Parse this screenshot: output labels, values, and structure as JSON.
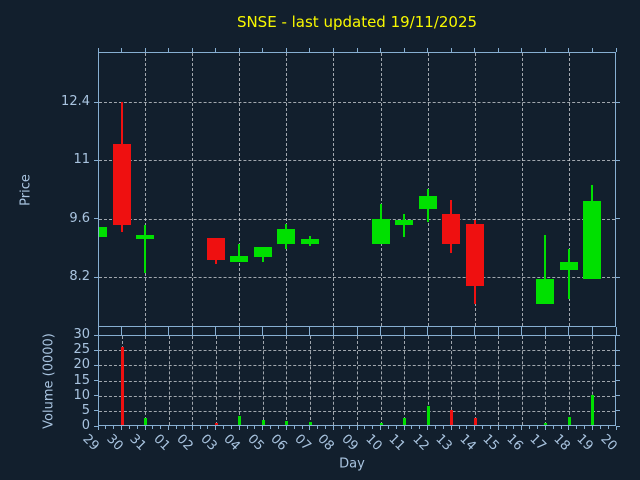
{
  "title": "SNSE - last updated 19/11/2025",
  "chart_data": {
    "type": "candlestick",
    "title": "SNSE - last updated 19/11/2025",
    "xlabel": "Day",
    "categories": [
      "29",
      "30",
      "31",
      "01",
      "02",
      "03",
      "04",
      "05",
      "06",
      "07",
      "08",
      "09",
      "10",
      "11",
      "12",
      "13",
      "14",
      "15",
      "16",
      "17",
      "18",
      "19",
      "20"
    ],
    "price_axis": {
      "ylabel": "Price",
      "ylim": [
        7.0,
        13.6
      ],
      "yticks": [
        8.2,
        9.6,
        11,
        12.4
      ],
      "ytick_labels": [
        "8.2",
        "9.6",
        "11",
        "12.4"
      ],
      "grid_x_every_days": 2,
      "grid_style": "dashed"
    },
    "volume_axis": {
      "ylabel": "Volume (0000)",
      "ylim": [
        0,
        30
      ],
      "yticks": [
        0,
        5,
        10,
        15,
        20,
        25,
        30
      ],
      "ytick_labels": [
        "0",
        "5",
        "10",
        "15",
        "20",
        "25",
        "30"
      ],
      "grid_x_every_days": 1,
      "grid_style": "dashed"
    },
    "candles": [
      {
        "day": "29",
        "open": 9.16,
        "high": 9.4,
        "low": 9.16,
        "close": 9.4,
        "volume": 0,
        "direction": "up"
      },
      {
        "day": "30",
        "open": 11.4,
        "high": 12.4,
        "low": 9.28,
        "close": 9.44,
        "volume": 26.0,
        "direction": "down"
      },
      {
        "day": "31",
        "open": 9.11,
        "high": 9.45,
        "low": 8.3,
        "close": 9.22,
        "volume": 2.8,
        "direction": "up"
      },
      {
        "day": "03",
        "open": 9.13,
        "high": 9.13,
        "low": 8.52,
        "close": 8.6,
        "volume": 1.0,
        "direction": "down"
      },
      {
        "day": "04",
        "open": 8.56,
        "high": 9.0,
        "low": 8.56,
        "close": 8.71,
        "volume": 3.4,
        "direction": "up"
      },
      {
        "day": "05",
        "open": 8.68,
        "high": 8.91,
        "low": 8.56,
        "close": 8.91,
        "volume": 2.0,
        "direction": "up"
      },
      {
        "day": "06",
        "open": 8.98,
        "high": 9.47,
        "low": 8.88,
        "close": 9.36,
        "volume": 1.8,
        "direction": "up"
      },
      {
        "day": "07",
        "open": 9.0,
        "high": 9.19,
        "low": 8.95,
        "close": 9.12,
        "volume": 1.3,
        "direction": "up"
      },
      {
        "day": "10",
        "open": 8.98,
        "high": 9.95,
        "low": 8.98,
        "close": 9.6,
        "volume": 1.1,
        "direction": "up"
      },
      {
        "day": "11",
        "open": 9.46,
        "high": 9.72,
        "low": 9.16,
        "close": 9.58,
        "volume": 2.7,
        "direction": "up"
      },
      {
        "day": "12",
        "open": 9.84,
        "high": 10.32,
        "low": 9.52,
        "close": 10.14,
        "volume": 6.5,
        "direction": "up"
      },
      {
        "day": "13",
        "open": 9.72,
        "high": 10.05,
        "low": 8.78,
        "close": 9.0,
        "volume": 5.4,
        "direction": "down"
      },
      {
        "day": "14",
        "open": 9.48,
        "high": 9.56,
        "low": 7.55,
        "close": 7.98,
        "volume": 2.7,
        "direction": "down"
      },
      {
        "day": "17",
        "open": 7.55,
        "high": 9.2,
        "low": 7.55,
        "close": 8.16,
        "volume": 1.0,
        "direction": "up"
      },
      {
        "day": "18",
        "open": 8.38,
        "high": 8.88,
        "low": 7.68,
        "close": 8.56,
        "volume": 2.9,
        "direction": "up"
      },
      {
        "day": "19",
        "open": 8.16,
        "high": 10.42,
        "low": 8.16,
        "close": 10.02,
        "volume": 10.2,
        "direction": "up"
      }
    ],
    "colors": {
      "up": "#00e000",
      "down": "#ef1010",
      "grid": "#d2d6da",
      "axis": "#87afd2",
      "tick_label": "#a9c4e0",
      "title": "#f8f800",
      "background": "#121f2d"
    },
    "legend": null,
    "grid": true
  }
}
